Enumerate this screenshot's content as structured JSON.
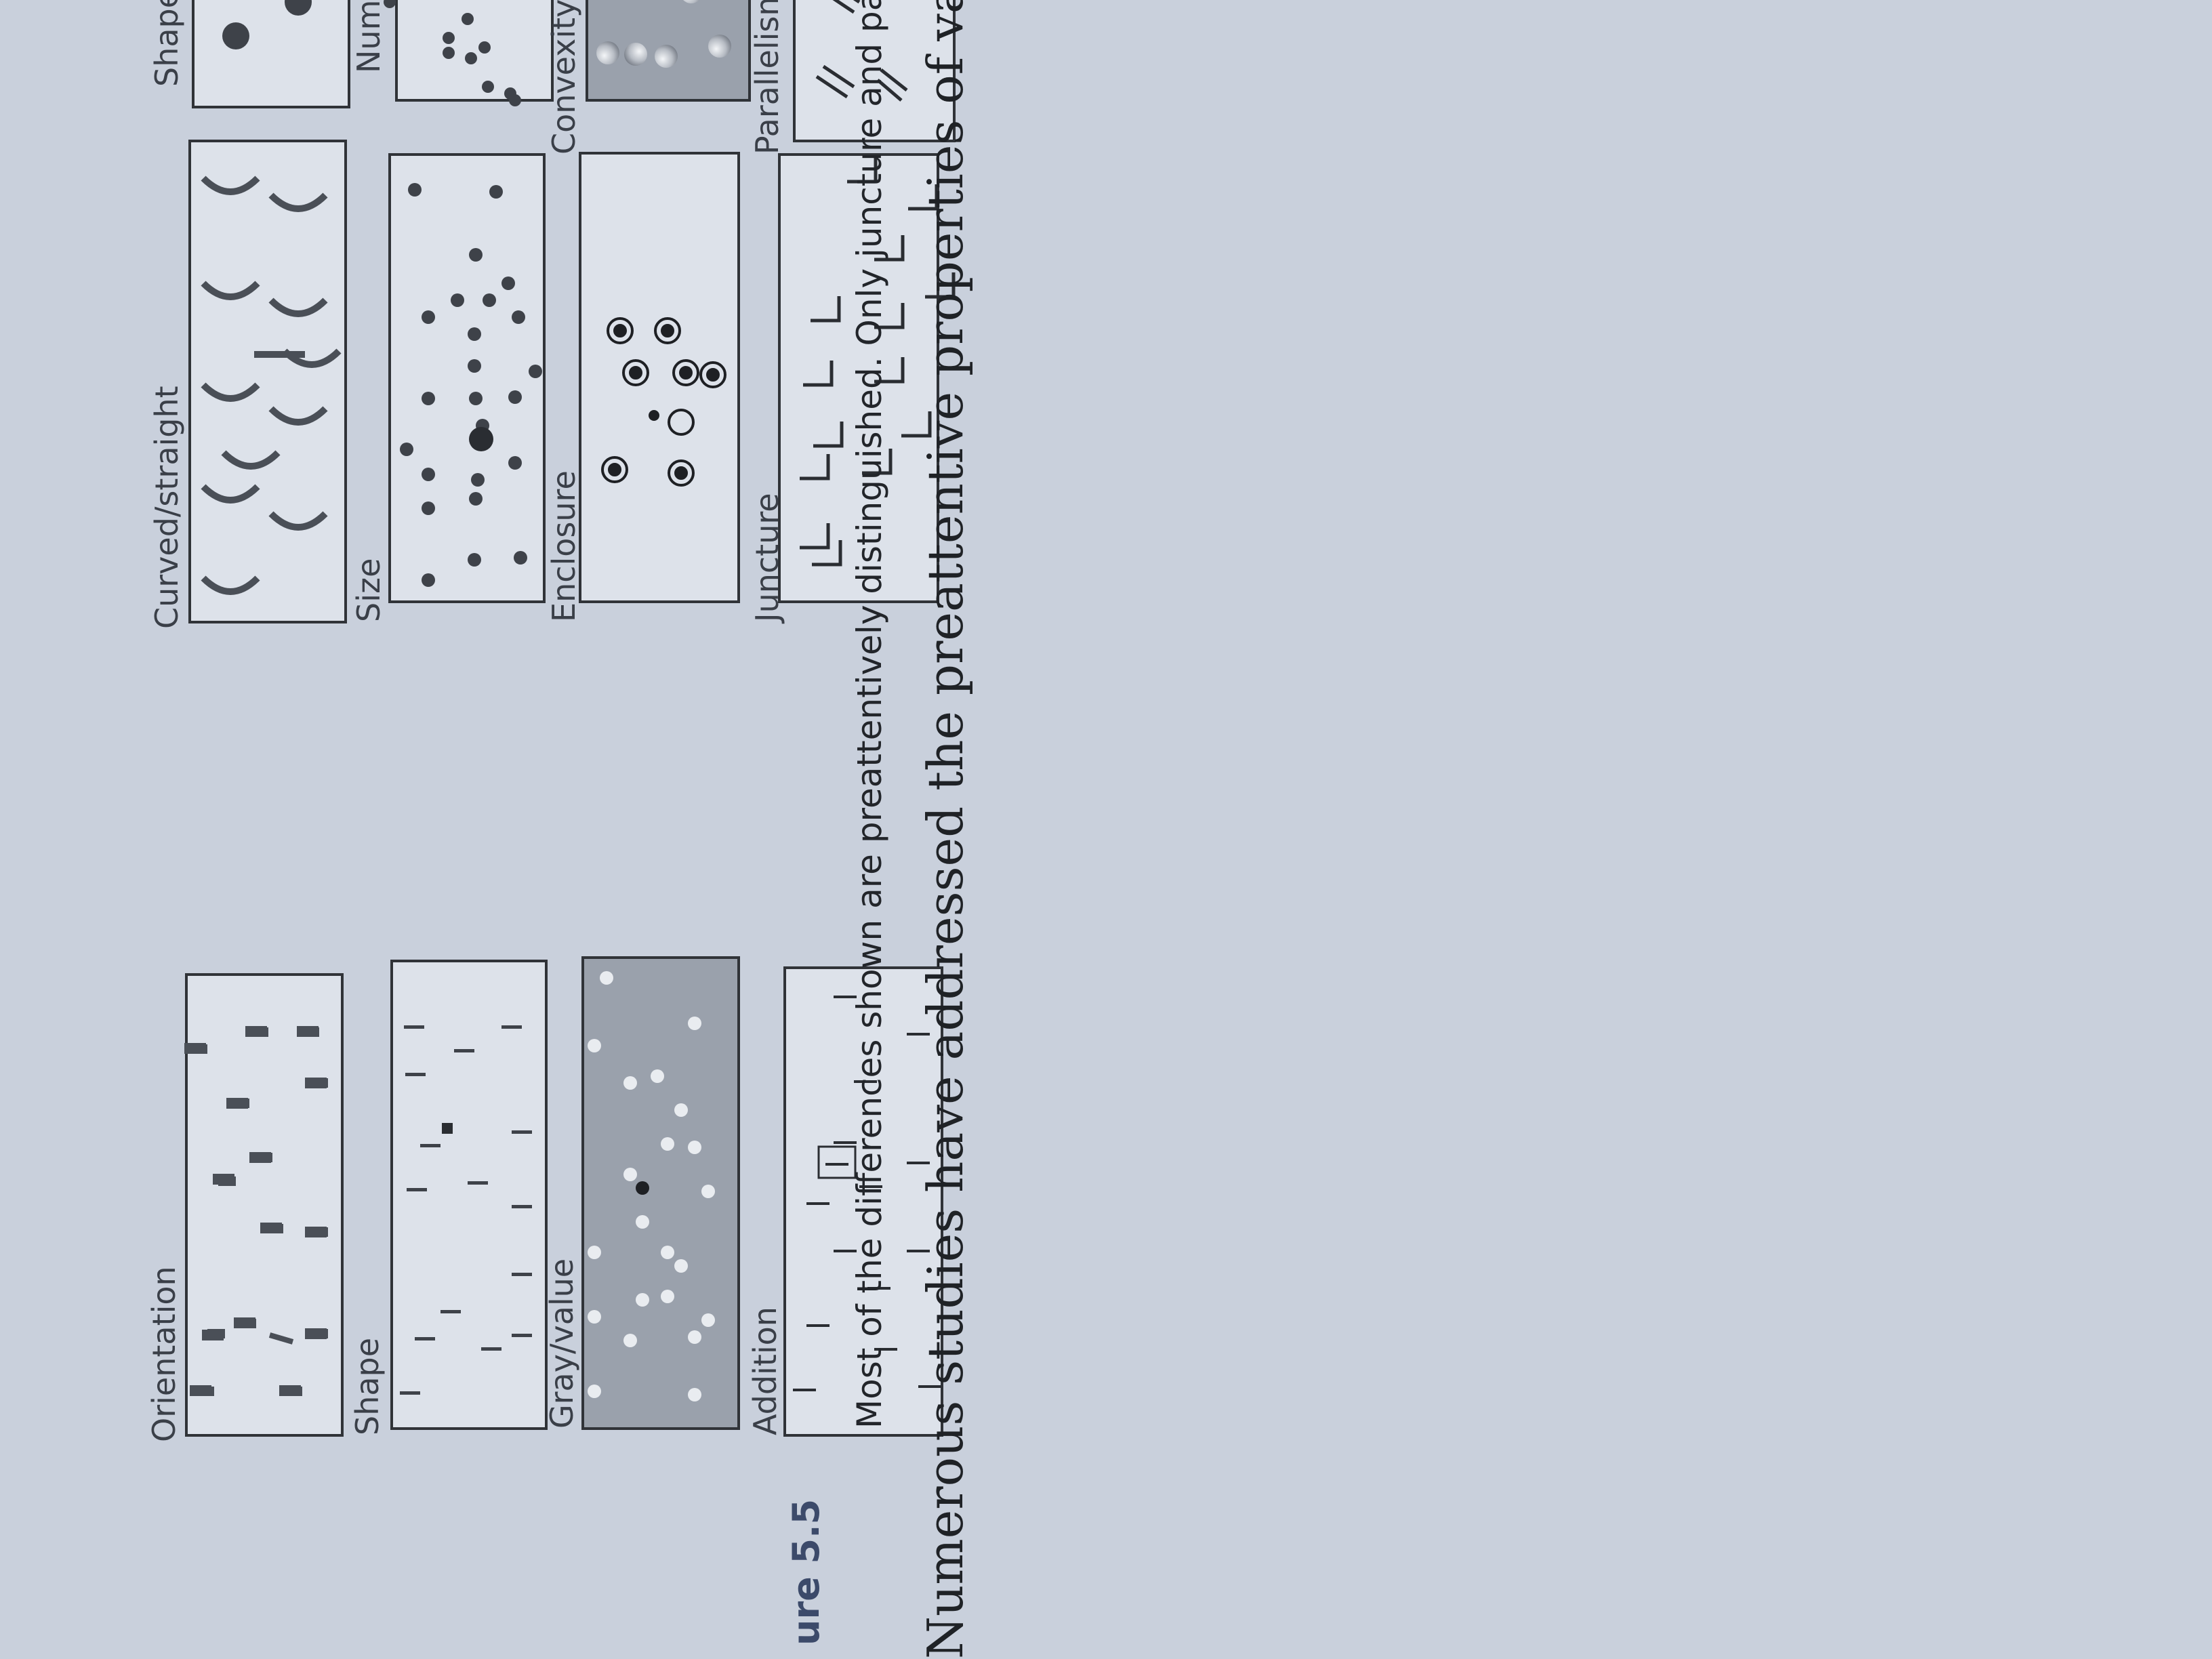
{
  "figure": {
    "panels": [
      {
        "id": "orientation",
        "label": "Orientation"
      },
      {
        "id": "curved",
        "label": "Curved/straight"
      },
      {
        "id": "shape_ellipse",
        "label": "Shape"
      },
      {
        "id": "shape_square",
        "label": "Shape"
      },
      {
        "id": "size",
        "label": "Size"
      },
      {
        "id": "number",
        "label": "Number"
      },
      {
        "id": "gray",
        "label": "Gray/value"
      },
      {
        "id": "enclosure",
        "label": "Enclosure"
      },
      {
        "id": "convexity",
        "label": "Convexity/concavity"
      },
      {
        "id": "addition",
        "label": "Addition"
      },
      {
        "id": "juncture",
        "label": "Juncture"
      },
      {
        "id": "parallelism",
        "label": "Parallelism"
      }
    ],
    "caption_number": "ure 5.5",
    "caption_text": "Most of the differences shown are preattentively distinguished. Only juncture and parallelism ar",
    "body_text_partial": "Numerous studies have addressed the preattentive properties of various combinatio"
  },
  "colors": {
    "page": "#c9d0dc",
    "panel_bg": "#dde2ea",
    "panel_gray": "#9aa1ac",
    "ink": "#303338",
    "label": "#3a3f48"
  }
}
